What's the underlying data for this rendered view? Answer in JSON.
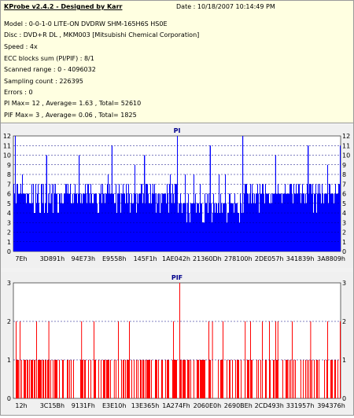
{
  "header": {
    "title": "KProbe v2.4.2 - Designed by Karr",
    "date": "Date : 10/18/2007 10:14:49 PM"
  },
  "info": [
    "Model : 0-0-1-0 LITE-ON DVDRW SHM-165H6S HS0E",
    "Disc : DVD+R DL , MKM003 [Mitsubishi Chemical Corporation]",
    "Speed : 4x",
    "ECC blocks sum (PI/PIF) : 8/1",
    "Scanned range : 0 - 4096032",
    "Sampling count : 226395",
    "Errors : 0",
    "PI Max= 12 , Average= 1.63 , Total= 52610",
    "PIF Max= 3 , Average= 0.06 , Total= 1825"
  ],
  "colors": {
    "pi": "#0000ff",
    "pif": "#ff0000",
    "title": "#00008b",
    "plot_bg": "#ffffff",
    "panel_bg": "#f0f0f0",
    "grid": "#000080"
  },
  "chart_data": [
    {
      "type": "bar",
      "title": "PI",
      "ylim": [
        0,
        12
      ],
      "yticks": [
        0,
        1,
        2,
        3,
        4,
        5,
        6,
        7,
        8,
        9,
        10,
        11,
        12
      ],
      "xticklabels": [
        "7Eh",
        "3D891h",
        "94E73h",
        "E9558h",
        "145F1h",
        "1AE042h",
        "21360Dh",
        "278100h",
        "2DE057h",
        "341839h",
        "3A8809h"
      ],
      "grid": "dashed horizontal",
      "series": [
        {
          "baseline_segments": [
            {
              "from": "7Eh",
              "to": "E9558h",
              "level": 5
            },
            {
              "from": "E9558h",
              "to": "1AE042h",
              "level": 5
            },
            {
              "from": "1AE042h",
              "to": "278100h",
              "level": 4
            },
            {
              "from": "278100h",
              "to": "3A8809h",
              "level": 5
            }
          ],
          "peaks": [
            {
              "x": "7Eh",
              "value": 12
            },
            {
              "x": "3D891h",
              "value": 10
            },
            {
              "x": "94E73h",
              "value": 10
            },
            {
              "x": "E9558h",
              "value": 11
            },
            {
              "x": "145F1h",
              "value": 10
            },
            {
              "x": "1AE042h",
              "value": 12
            },
            {
              "x": "21360Dh",
              "value": 11
            },
            {
              "x": "278100h",
              "value": 12
            },
            {
              "x": "2DE057h",
              "value": 10
            },
            {
              "x": "341839h",
              "value": 11
            },
            {
              "x": "3A8809h",
              "value": 11
            }
          ]
        }
      ]
    },
    {
      "type": "bar",
      "title": "PIF",
      "ylim": [
        0,
        3
      ],
      "yticks": [
        0,
        1,
        2,
        3
      ],
      "xticklabels": [
        "12h",
        "3C15Bh",
        "9131Fh",
        "E3E10h",
        "13E365h",
        "1A274Fh",
        "2060E0h",
        "2690BEh",
        "2CD493h",
        "331957h",
        "394376h"
      ],
      "grid": "dashed horizontal",
      "series": [
        {
          "peaks": [
            {
              "x": "12h",
              "value": 2
            },
            {
              "x": "3C15Bh",
              "value": 2
            },
            {
              "x": "9131Fh",
              "value": 2
            },
            {
              "x": "E3E10h",
              "value": 1
            },
            {
              "x": "13E365h",
              "value": 1
            },
            {
              "x": "1A274Fh",
              "value": 3
            },
            {
              "x": "2060E0h",
              "value": 2
            },
            {
              "x": "2690BEh",
              "value": 2
            },
            {
              "x": "2CD493h",
              "value": 2
            },
            {
              "x": "331957h",
              "value": 2
            },
            {
              "x": "394376h",
              "value": 2
            }
          ]
        }
      ]
    }
  ]
}
